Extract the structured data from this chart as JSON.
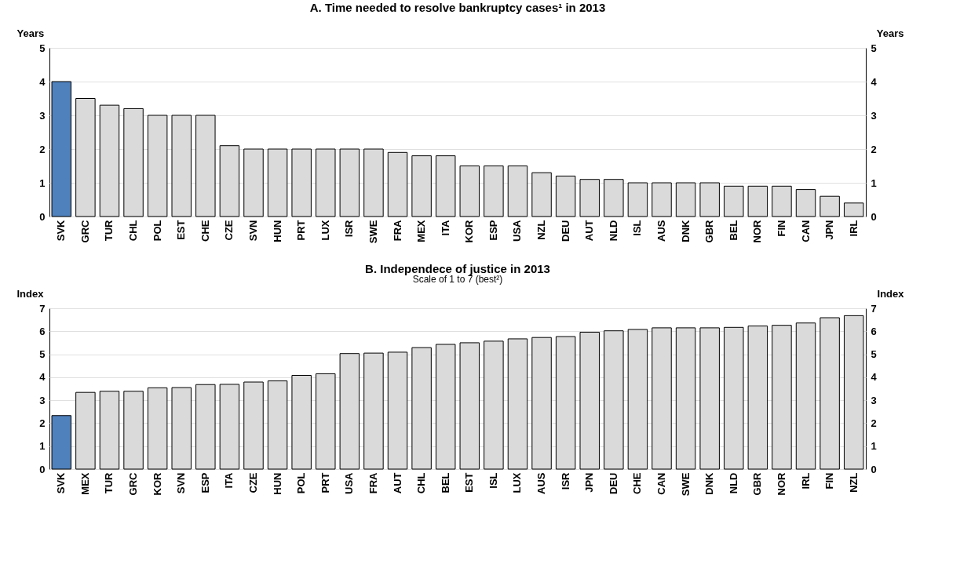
{
  "chart_data": [
    {
      "type": "bar",
      "title": "A. Time needed to resolve bankruptcy cases¹ in 2013",
      "ylabel": "Years",
      "y2label": "Years",
      "categories": [
        "SVK",
        "GRC",
        "TUR",
        "CHL",
        "POL",
        "EST",
        "CHE",
        "CZE",
        "SVN",
        "HUN",
        "PRT",
        "LUX",
        "ISR",
        "SWE",
        "FRA",
        "MEX",
        "ITA",
        "KOR",
        "ESP",
        "USA",
        "NZL",
        "DEU",
        "AUT",
        "NLD",
        "ISL",
        "AUS",
        "DNK",
        "GBR",
        "BEL",
        "NOR",
        "FIN",
        "CAN",
        "JPN",
        "IRL"
      ],
      "values": [
        4,
        3.5,
        3.3,
        3.2,
        3,
        3,
        3,
        2.1,
        2,
        2,
        2,
        2,
        2,
        2,
        1.9,
        1.8,
        1.8,
        1.5,
        1.5,
        1.5,
        1.3,
        1.2,
        1.1,
        1.1,
        1,
        1,
        1,
        1,
        0.9,
        0.9,
        0.9,
        0.8,
        0.6,
        0.4
      ],
      "colors": [
        "#4f81bd",
        "#dadada",
        "#dadada",
        "#dadada",
        "#dadada",
        "#dadada",
        "#dadada",
        "#dadada",
        "#dadada",
        "#dadada",
        "#dadada",
        "#dadada",
        "#dadada",
        "#dadada",
        "#dadada",
        "#dadada",
        "#dadada",
        "#dadada",
        "#dadada",
        "#dadada",
        "#dadada",
        "#dadada",
        "#dadada",
        "#dadada",
        "#dadada",
        "#dadada",
        "#dadada",
        "#dadada",
        "#dadada",
        "#dadada",
        "#dadada",
        "#dadada",
        "#dadada",
        "#dadada"
      ],
      "ylim": [
        0,
        5
      ],
      "yticks": [
        0,
        1,
        2,
        3,
        4,
        5
      ],
      "y2lim": [
        0,
        5
      ],
      "y2ticks": [
        0,
        1,
        2,
        3,
        4,
        5
      ],
      "grid": "y"
    },
    {
      "type": "bar",
      "title": "B. Independece of justice in 2013",
      "subtitle": "Scale of 1 to 7 (best²)",
      "ylabel": "Index",
      "y2label": "Index",
      "categories": [
        "SVK",
        "MEX",
        "TUR",
        "GRC",
        "KOR",
        "SVN",
        "ESP",
        "ITA",
        "CZE",
        "HUN",
        "POL",
        "PRT",
        "USA",
        "FRA",
        "AUT",
        "CHL",
        "BEL",
        "EST",
        "ISL",
        "LUX",
        "AUS",
        "ISR",
        "JPN",
        "DEU",
        "CHE",
        "CAN",
        "SWE",
        "DNK",
        "NLD",
        "GBR",
        "NOR",
        "IRL",
        "FIN",
        "NZL"
      ],
      "values": [
        2.33,
        3.34,
        3.39,
        3.39,
        3.54,
        3.55,
        3.68,
        3.69,
        3.79,
        3.84,
        4.08,
        4.15,
        5.03,
        5.05,
        5.09,
        5.29,
        5.43,
        5.5,
        5.57,
        5.67,
        5.73,
        5.77,
        5.96,
        6.02,
        6.08,
        6.15,
        6.15,
        6.15,
        6.17,
        6.23,
        6.26,
        6.36,
        6.59,
        6.68
      ],
      "colors": [
        "#4f81bd",
        "#dadada",
        "#dadada",
        "#dadada",
        "#dadada",
        "#dadada",
        "#dadada",
        "#dadada",
        "#dadada",
        "#dadada",
        "#dadada",
        "#dadada",
        "#dadada",
        "#dadada",
        "#dadada",
        "#dadada",
        "#dadada",
        "#dadada",
        "#dadada",
        "#dadada",
        "#dadada",
        "#dadada",
        "#dadada",
        "#dadada",
        "#dadada",
        "#dadada",
        "#dadada",
        "#dadada",
        "#dadada",
        "#dadada",
        "#dadada",
        "#dadada",
        "#dadada",
        "#dadada"
      ],
      "ylim": [
        0,
        7
      ],
      "yticks": [
        0,
        1,
        2,
        3,
        4,
        5,
        6,
        7
      ],
      "y2lim": [
        0,
        7
      ],
      "y2ticks": [
        0,
        1,
        2,
        3,
        4,
        5,
        6,
        7
      ],
      "grid": "y"
    }
  ]
}
